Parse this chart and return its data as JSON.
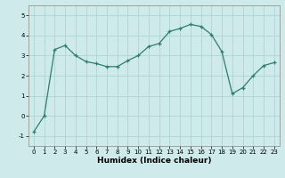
{
  "x": [
    0,
    1,
    2,
    3,
    4,
    5,
    6,
    7,
    8,
    9,
    10,
    11,
    12,
    13,
    14,
    15,
    16,
    17,
    18,
    19,
    20,
    21,
    22,
    23
  ],
  "y": [
    -0.8,
    0.0,
    3.3,
    3.5,
    3.0,
    2.7,
    2.6,
    2.45,
    2.45,
    2.75,
    3.0,
    3.45,
    3.6,
    4.2,
    4.35,
    4.55,
    4.45,
    4.05,
    3.2,
    1.1,
    1.4,
    2.0,
    2.5,
    2.65
  ],
  "line_color": "#2e7d6e",
  "marker": "+",
  "marker_size": 3,
  "xlabel": "Humidex (Indice chaleur)",
  "bg_color": "#ceeaea",
  "grid_color": "#aed4d4",
  "xlim": [
    -0.5,
    23.5
  ],
  "ylim": [
    -1.5,
    5.5
  ],
  "yticks": [
    -1,
    0,
    1,
    2,
    3,
    4,
    5
  ],
  "xticks": [
    0,
    1,
    2,
    3,
    4,
    5,
    6,
    7,
    8,
    9,
    10,
    11,
    12,
    13,
    14,
    15,
    16,
    17,
    18,
    19,
    20,
    21,
    22,
    23
  ],
  "tick_fontsize": 5,
  "xlabel_fontsize": 6.5
}
